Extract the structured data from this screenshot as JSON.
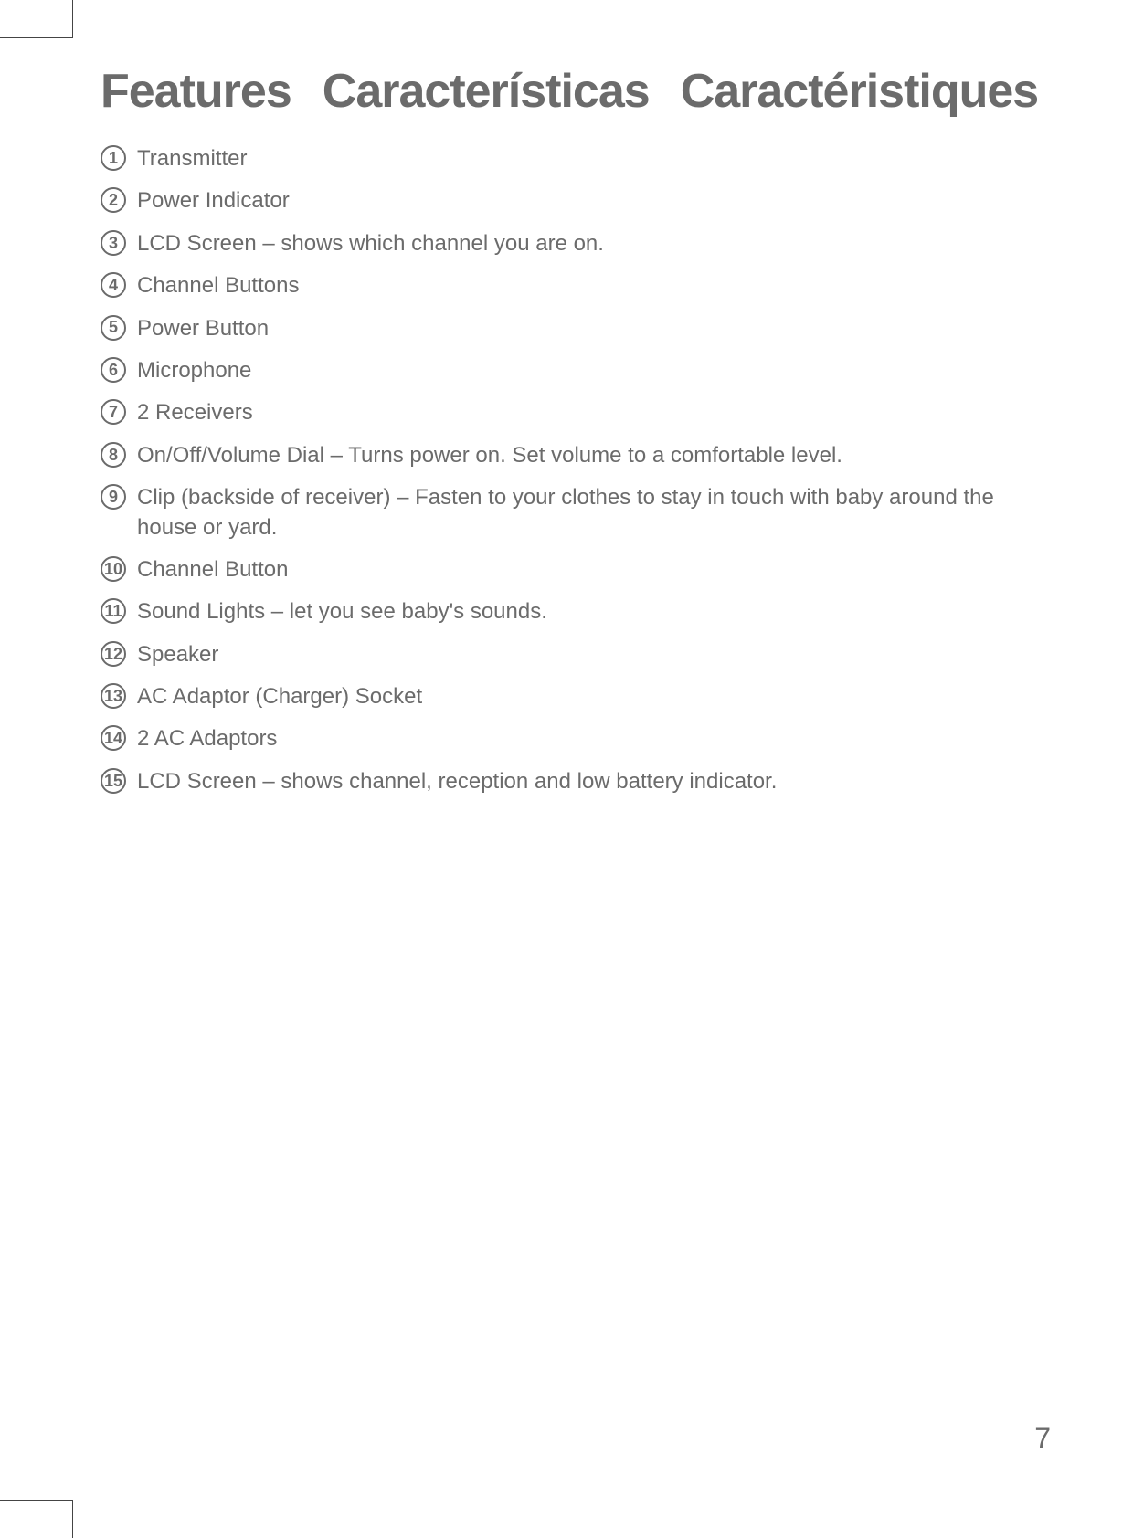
{
  "title_parts": [
    "Features",
    "Características",
    "Caractéristiques"
  ],
  "features": [
    {
      "n": "1",
      "text": "Transmitter"
    },
    {
      "n": "2",
      "text": "Power Indicator"
    },
    {
      "n": "3",
      "text": "LCD Screen – shows which channel you are on."
    },
    {
      "n": "4",
      "text": "Channel Buttons"
    },
    {
      "n": "5",
      "text": "Power Button"
    },
    {
      "n": "6",
      "text": "Microphone"
    },
    {
      "n": "7",
      "text": "2 Receivers"
    },
    {
      "n": "8",
      "text": "On/Off/Volume Dial – Turns power on. Set volume to a comfortable level."
    },
    {
      "n": "9",
      "text": "Clip (backside of receiver) – Fasten to your clothes to stay in touch with baby around the house or yard."
    },
    {
      "n": "10",
      "text": "Channel Button"
    },
    {
      "n": "11",
      "text": "Sound Lights – let you see baby's sounds."
    },
    {
      "n": "12",
      "text": "Speaker"
    },
    {
      "n": "13",
      "text": "AC Adaptor (Charger) Socket"
    },
    {
      "n": "14",
      "text": "2 AC Adaptors"
    },
    {
      "n": "15",
      "text": "LCD Screen – shows channel, reception and low battery indicator."
    }
  ],
  "page_number": "7",
  "colors": {
    "text": "#6b6b6b",
    "crop": "#444444",
    "bg": "#ffffff"
  },
  "typography": {
    "title_fontsize": 52,
    "body_fontsize": 24,
    "circle_fontsize": 18,
    "pagenum_fontsize": 32
  }
}
